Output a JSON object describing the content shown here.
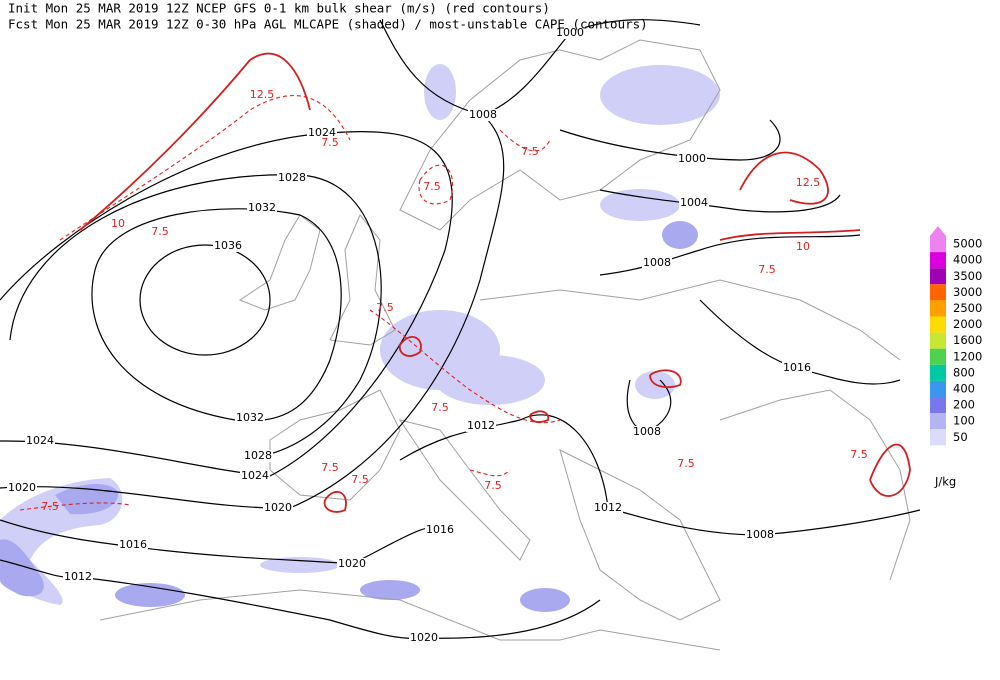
{
  "header": {
    "line1": "Init  Mon 25 MAR 2019 12Z  NCEP GFS 0-1 km bulk shear (m/s) (red contours)",
    "line2": "Fcst Mon 25 MAR 2019 12Z  0-30 hPa AGL MLCAPE (shaded) / most-unstable CAPE (contours)"
  },
  "isobar_labels": [
    1000,
    1008,
    1024,
    1028,
    1032,
    1036,
    1000,
    1004,
    1008,
    1016,
    1012,
    1008,
    1032,
    1024,
    1028,
    1024,
    1020,
    1020,
    1016,
    1012,
    1020,
    1016,
    1012,
    1008,
    1020
  ],
  "shear_labels": [
    7.5,
    7.5,
    7.5,
    12.5,
    10,
    7.5,
    7.5,
    7.5,
    7.5,
    7.5,
    7.5,
    7.5,
    7.5,
    7.5,
    7.5,
    10,
    12.5
  ],
  "legend": {
    "levels": [
      {
        "label": 5000,
        "color": "#ee82ee"
      },
      {
        "label": 4000,
        "color": "#dc00dc"
      },
      {
        "label": 3500,
        "color": "#a000b4"
      },
      {
        "label": 3000,
        "color": "#ff6400"
      },
      {
        "label": 2500,
        "color": "#ffa000"
      },
      {
        "label": 2000,
        "color": "#ffdc00"
      },
      {
        "label": 1600,
        "color": "#c8e632"
      },
      {
        "label": 1200,
        "color": "#50d250"
      },
      {
        "label": 800,
        "color": "#00c8a0"
      },
      {
        "label": 400,
        "color": "#3c96f0"
      },
      {
        "label": 200,
        "color": "#7878eb"
      },
      {
        "label": 100,
        "color": "#b4b4f0"
      },
      {
        "label": 50,
        "color": "#dcdcfa"
      }
    ],
    "unit": "J/kg"
  }
}
